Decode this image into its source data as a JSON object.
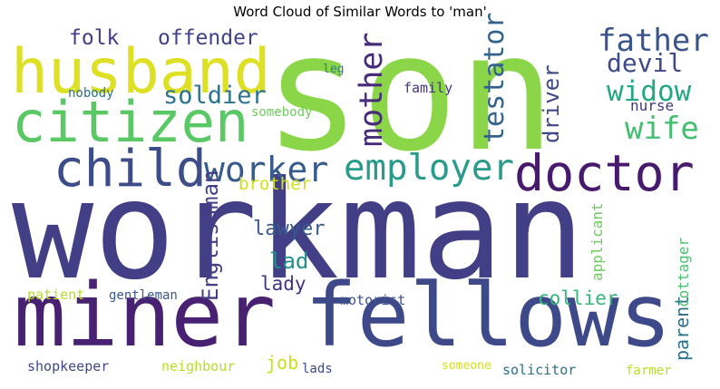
{
  "title": "Word Cloud of Similar Words to 'man'",
  "words": [
    {
      "text": "son",
      "color": "#8ad548"
    },
    {
      "text": "workman",
      "color": "#433f86"
    },
    {
      "text": "husband",
      "color": "#dde024"
    },
    {
      "text": "citizen",
      "color": "#5ac864"
    },
    {
      "text": "child",
      "color": "#3d4d8a"
    },
    {
      "text": "miner",
      "color": "#482173"
    },
    {
      "text": "fellows",
      "color": "#3e4989"
    },
    {
      "text": "doctor",
      "color": "#471a6e"
    },
    {
      "text": "employer",
      "color": "#2a9a8a"
    },
    {
      "text": "worker",
      "color": "#375b8d"
    },
    {
      "text": "father",
      "color": "#3a548c"
    },
    {
      "text": "wife",
      "color": "#44bf70"
    },
    {
      "text": "widow",
      "color": "#23a883"
    },
    {
      "text": "mother",
      "color": "#472c7a"
    },
    {
      "text": "testator",
      "color": "#33638d"
    },
    {
      "text": "devil",
      "color": "#3e4a89"
    },
    {
      "text": "soldier",
      "color": "#2c738e"
    },
    {
      "text": "driver",
      "color": "#3f4788"
    },
    {
      "text": "folk",
      "color": "#433d84"
    },
    {
      "text": "offender",
      "color": "#404387"
    },
    {
      "text": "lawyer",
      "color": "#375a8c"
    },
    {
      "text": "lad",
      "color": "#21918c"
    },
    {
      "text": "lady",
      "color": "#463480"
    },
    {
      "text": "Englishman",
      "color": "#433e85"
    },
    {
      "text": "brother",
      "color": "#d0e11c"
    },
    {
      "text": "parent",
      "color": "#2c728e"
    },
    {
      "text": "collier",
      "color": "#35b779"
    },
    {
      "text": "job",
      "color": "#c8e020"
    },
    {
      "text": "nurse",
      "color": "#453882"
    },
    {
      "text": "family",
      "color": "#463480"
    },
    {
      "text": "leg",
      "color": "#277f8e"
    },
    {
      "text": "nobody",
      "color": "#2d708e"
    },
    {
      "text": "somebody",
      "color": "#6ccd5a"
    },
    {
      "text": "applicant",
      "color": "#6ccd5a"
    },
    {
      "text": "cottager",
      "color": "#4ac16d"
    },
    {
      "text": "patient",
      "color": "#b5de2b"
    },
    {
      "text": "gentleman",
      "color": "#38598c"
    },
    {
      "text": "motorist",
      "color": "#3b528b"
    },
    {
      "text": "shopkeeper",
      "color": "#404688"
    },
    {
      "text": "neighbour",
      "color": "#b5de2b"
    },
    {
      "text": "lads",
      "color": "#3e4989"
    },
    {
      "text": "someone",
      "color": "#d2e21b"
    },
    {
      "text": "solicitor",
      "color": "#2d708e"
    },
    {
      "text": "farmer",
      "color": "#b5de2b"
    }
  ]
}
